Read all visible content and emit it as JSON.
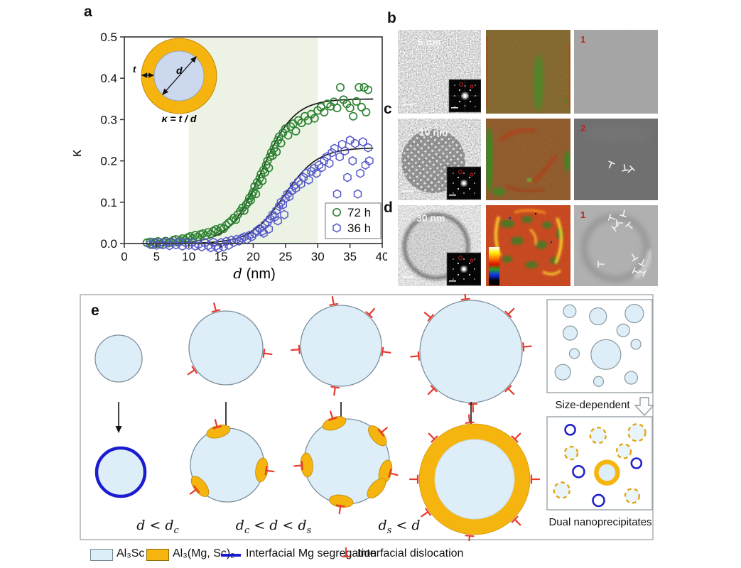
{
  "panel_a": {
    "label": "a",
    "inset": {
      "d_label": "d",
      "t_label": "t",
      "formula": "κ = t / d"
    }
  },
  "chart_data": {
    "type": "scatter",
    "xlabel_italic": "d",
    "xlabel_unit": " (nm)",
    "ylabel": "κ",
    "xlim": [
      0,
      40
    ],
    "ylim": [
      -0.05,
      0.5
    ],
    "x_ticks": [
      "0",
      "5",
      "10",
      "15",
      "20",
      "25",
      "30",
      "35",
      "40"
    ],
    "y_ticks": [
      "0.0",
      "0.1",
      "0.2",
      "0.3",
      "0.4",
      "0.5"
    ],
    "band": {
      "x0": 10,
      "x1": 30,
      "color": "#ecf3e5"
    },
    "legend_position": "bottom-right",
    "grid": false,
    "series": [
      {
        "name": "72 h",
        "marker": "circle",
        "color": "#2e8233",
        "fit": {
          "ymax": 0.35,
          "x0": 21.3,
          "width": 2.5,
          "xstart": 2.6,
          "xend": 38.6
        },
        "points": [
          [
            3.5,
            0.002
          ],
          [
            4,
            0.004
          ],
          [
            4.4,
            -0.003
          ],
          [
            4.8,
            0.002
          ],
          [
            5.2,
            0.005
          ],
          [
            5.6,
            -0.002
          ],
          [
            6,
            0.003
          ],
          [
            6.4,
            0.006
          ],
          [
            6.8,
            0.001
          ],
          [
            7.2,
            0.004
          ],
          [
            7.6,
            0.008
          ],
          [
            8,
            0.01
          ],
          [
            8.3,
            0.003
          ],
          [
            8.7,
            0.007
          ],
          [
            9,
            0.012
          ],
          [
            9.4,
            0.008
          ],
          [
            9.8,
            0.014
          ],
          [
            10.2,
            0.017
          ],
          [
            10.6,
            0.012
          ],
          [
            11,
            0.02
          ],
          [
            11.4,
            0.016
          ],
          [
            11.8,
            0.022
          ],
          [
            12.2,
            0.024
          ],
          [
            12.6,
            0.019
          ],
          [
            13,
            0.027
          ],
          [
            13.4,
            0.023
          ],
          [
            13.8,
            0.03
          ],
          [
            14.2,
            0.034
          ],
          [
            14.6,
            0.029
          ],
          [
            15,
            0.038
          ],
          [
            15.4,
            0.036
          ],
          [
            15.8,
            0.044
          ],
          [
            16.2,
            0.05
          ],
          [
            16.6,
            0.055
          ],
          [
            17,
            0.062
          ],
          [
            17.3,
            0.058
          ],
          [
            17.6,
            0.07
          ],
          [
            18,
            0.078
          ],
          [
            18.3,
            0.086
          ],
          [
            18.6,
            0.08
          ],
          [
            18.9,
            0.094
          ],
          [
            19.2,
            0.1
          ],
          [
            19.4,
            0.11
          ],
          [
            19.6,
            0.105
          ],
          [
            19.8,
            0.118
          ],
          [
            20,
            0.125
          ],
          [
            20.2,
            0.138
          ],
          [
            20.4,
            0.12
          ],
          [
            20.6,
            0.148
          ],
          [
            20.8,
            0.142
          ],
          [
            21,
            0.158
          ],
          [
            21.2,
            0.168
          ],
          [
            21.4,
            0.152
          ],
          [
            21.6,
            0.178
          ],
          [
            21.8,
            0.172
          ],
          [
            22,
            0.19
          ],
          [
            22.2,
            0.2
          ],
          [
            22.4,
            0.183
          ],
          [
            22.6,
            0.21
          ],
          [
            22.8,
            0.22
          ],
          [
            23,
            0.213
          ],
          [
            23.2,
            0.23
          ],
          [
            23.4,
            0.24
          ],
          [
            23.6,
            0.222
          ],
          [
            23.8,
            0.25
          ],
          [
            24,
            0.258
          ],
          [
            24.3,
            0.243
          ],
          [
            24.6,
            0.268
          ],
          [
            25,
            0.278
          ],
          [
            25.4,
            0.262
          ],
          [
            25.8,
            0.283
          ],
          [
            26.2,
            0.29
          ],
          [
            26.6,
            0.272
          ],
          [
            27,
            0.298
          ],
          [
            27.5,
            0.292
          ],
          [
            28,
            0.308
          ],
          [
            28.5,
            0.298
          ],
          [
            29,
            0.313
          ],
          [
            29.5,
            0.303
          ],
          [
            30,
            0.322
          ],
          [
            30.5,
            0.33
          ],
          [
            31,
            0.318
          ],
          [
            31.5,
            0.338
          ],
          [
            32,
            0.332
          ],
          [
            32.5,
            0.343
          ],
          [
            33,
            0.328
          ],
          [
            33.5,
            0.378
          ],
          [
            34,
            0.348
          ],
          [
            34.5,
            0.338
          ],
          [
            35,
            0.328
          ],
          [
            35.5,
            0.308
          ],
          [
            36,
            0.344
          ],
          [
            36.4,
            0.378
          ],
          [
            36.8,
            0.33
          ],
          [
            37.2,
            0.378
          ],
          [
            37.5,
            0.318
          ],
          [
            37.8,
            0.372
          ]
        ]
      },
      {
        "name": "36 h",
        "marker": "hexagon",
        "color": "#5457c9",
        "fit": {
          "ymax": 0.232,
          "x0": 24.8,
          "width": 2.6,
          "xstart": 2.6,
          "xend": 38.6
        },
        "points": [
          [
            4,
            -0.002
          ],
          [
            4.5,
            0.003
          ],
          [
            5,
            -0.004
          ],
          [
            5.5,
            0.002
          ],
          [
            6,
            -0.003
          ],
          [
            6.5,
            0.004
          ],
          [
            7,
            -0.005
          ],
          [
            7.5,
            0.002
          ],
          [
            8,
            -0.003
          ],
          [
            8.5,
            0.004
          ],
          [
            9,
            -0.006
          ],
          [
            9.5,
            0.002
          ],
          [
            10,
            -0.004
          ],
          [
            10.5,
            0.003
          ],
          [
            11,
            -0.006
          ],
          [
            11.5,
            -0.002
          ],
          [
            12,
            -0.008
          ],
          [
            12.5,
            0.002
          ],
          [
            13,
            -0.005
          ],
          [
            13.4,
            -0.01
          ],
          [
            13.8,
            0.003
          ],
          [
            14.2,
            -0.006
          ],
          [
            14.6,
            -0.012
          ],
          [
            15,
            0.002
          ],
          [
            15.4,
            -0.008
          ],
          [
            15.8,
            0.005
          ],
          [
            16.2,
            -0.004
          ],
          [
            16.6,
            0.008
          ],
          [
            17,
            0.003
          ],
          [
            17.4,
            0.01
          ],
          [
            17.8,
            0.006
          ],
          [
            18.2,
            0.013
          ],
          [
            18.6,
            0.016
          ],
          [
            19,
            0.01
          ],
          [
            19.4,
            0.02
          ],
          [
            19.8,
            0.017
          ],
          [
            20.2,
            0.025
          ],
          [
            20.6,
            0.031
          ],
          [
            21,
            0.036
          ],
          [
            21.4,
            0.03
          ],
          [
            21.6,
            0.025
          ],
          [
            21.8,
            0.046
          ],
          [
            22.2,
            0.052
          ],
          [
            22.4,
            0.035
          ],
          [
            22.6,
            0.06
          ],
          [
            23,
            0.07
          ],
          [
            23.3,
            0.064
          ],
          [
            23.6,
            0.08
          ],
          [
            23.8,
            0.055
          ],
          [
            24,
            0.09
          ],
          [
            24.3,
            0.1
          ],
          [
            24.6,
            0.094
          ],
          [
            24.8,
            0.07
          ],
          [
            25,
            0.11
          ],
          [
            25.3,
            0.12
          ],
          [
            25.6,
            0.114
          ],
          [
            26,
            0.128
          ],
          [
            26.3,
            0.14
          ],
          [
            26.6,
            0.134
          ],
          [
            27,
            0.15
          ],
          [
            27.4,
            0.144
          ],
          [
            27.8,
            0.16
          ],
          [
            28.2,
            0.17
          ],
          [
            28.6,
            0.154
          ],
          [
            29,
            0.175
          ],
          [
            29.4,
            0.182
          ],
          [
            29.8,
            0.17
          ],
          [
            30.2,
            0.19
          ],
          [
            30.6,
            0.184
          ],
          [
            31,
            0.2
          ],
          [
            31.4,
            0.21
          ],
          [
            31.8,
            0.194
          ],
          [
            32.2,
            0.22
          ],
          [
            32.6,
            0.23
          ],
          [
            33,
            0.12
          ],
          [
            33.4,
            0.21
          ],
          [
            33.8,
            0.24
          ],
          [
            34.2,
            0.224
          ],
          [
            34.6,
            0.16
          ],
          [
            35,
            0.25
          ],
          [
            35.4,
            0.2
          ],
          [
            35.8,
            0.242
          ],
          [
            36.2,
            0.12
          ],
          [
            36.6,
            0.17
          ],
          [
            37,
            0.246
          ],
          [
            37.4,
            0.19
          ],
          [
            37.8,
            0.232
          ],
          [
            38,
            0.2
          ]
        ]
      }
    ]
  },
  "panel_b": {
    "label": "b",
    "tem_label": "6 nm",
    "map_number": "1"
  },
  "panel_c": {
    "label": "c",
    "tem_label": "10 nm",
    "map_number": "2"
  },
  "panel_d": {
    "label": "d",
    "tem_label": "30 nm",
    "map_number": "1"
  },
  "panel_e": {
    "label": "e",
    "cond1": {
      "a": "d < d",
      "a_sub": "c",
      "b": "",
      "b_sub": ""
    },
    "cond2": {
      "a": "d",
      "a_sub": "c",
      "b": " < d < d",
      "b_sub": "s"
    },
    "cond3": {
      "a": "d",
      "a_sub": "s",
      "b": " < d",
      "b_sub": ""
    },
    "size_dependent": "Size-dependent",
    "dual_nano": "Dual nanoprecipitates"
  },
  "bottom_legend": {
    "al3sc": "Al₃Sc",
    "al3mgsc": "Al₃(Mg, Sc)₂",
    "mg_segregation": "Interfacial Mg segregation",
    "dislocation": "Interfacial dislocation"
  },
  "colors": {
    "al3sc_fill": "#ddeef8",
    "al3sc_border": "#7b8f9b",
    "shell_orange": "#f6b40e",
    "mg_blue": "#1b1bd0",
    "dislocation_red": "#e8392e",
    "series_green": "#2e8233",
    "series_blue": "#5457c9",
    "band_green": "#ecf3e5"
  }
}
